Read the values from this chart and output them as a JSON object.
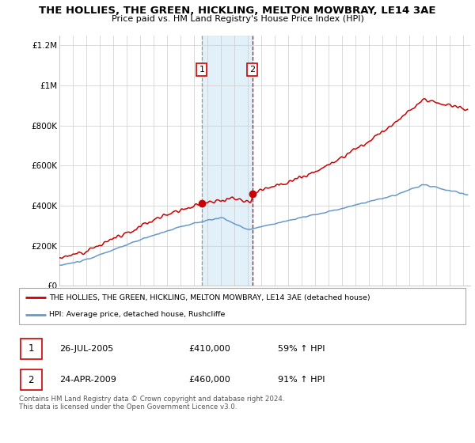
{
  "title": "THE HOLLIES, THE GREEN, HICKLING, MELTON MOWBRAY, LE14 3AE",
  "subtitle": "Price paid vs. HM Land Registry's House Price Index (HPI)",
  "legend_line1": "THE HOLLIES, THE GREEN, HICKLING, MELTON MOWBRAY, LE14 3AE (detached house)",
  "legend_line2": "HPI: Average price, detached house, Rushcliffe",
  "footnote": "Contains HM Land Registry data © Crown copyright and database right 2024.\nThis data is licensed under the Open Government Licence v3.0.",
  "transaction1_date": "26-JUL-2005",
  "transaction1_price": "£410,000",
  "transaction1_hpi": "59% ↑ HPI",
  "transaction2_date": "24-APR-2009",
  "transaction2_price": "£460,000",
  "transaction2_hpi": "91% ↑ HPI",
  "sale1_x": 2005.57,
  "sale1_y": 410000,
  "sale2_x": 2009.31,
  "sale2_y": 460000,
  "hpi_color": "#6699cc",
  "price_color": "#cc0000",
  "shade_color": "#ddeef8",
  "vline1_color": "#999999",
  "vline2_color": "#cc0000",
  "ylim": [
    0,
    1250000
  ],
  "xlim": [
    1995,
    2025.5
  ],
  "yticks": [
    0,
    200000,
    400000,
    600000,
    800000,
    1000000,
    1200000
  ],
  "ytick_labels": [
    "£0",
    "£200K",
    "£400K",
    "£600K",
    "£800K",
    "£1M",
    "£1.2M"
  ],
  "xticks": [
    1995,
    1996,
    1997,
    1998,
    1999,
    2000,
    2001,
    2002,
    2003,
    2004,
    2005,
    2006,
    2007,
    2008,
    2009,
    2010,
    2011,
    2012,
    2013,
    2014,
    2015,
    2016,
    2017,
    2018,
    2019,
    2020,
    2021,
    2022,
    2023,
    2024,
    2025
  ]
}
